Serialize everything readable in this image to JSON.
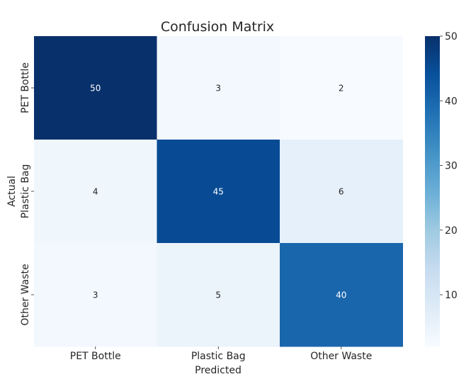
{
  "chart_data": {
    "type": "heatmap",
    "title": "Confusion Matrix",
    "xlabel": "Predicted",
    "ylabel": "Actual",
    "x_categories": [
      "PET Bottle",
      "Plastic Bag",
      "Other Waste"
    ],
    "y_categories": [
      "PET Bottle",
      "Plastic Bag",
      "Other Waste"
    ],
    "values": [
      [
        50,
        3,
        2
      ],
      [
        4,
        45,
        6
      ],
      [
        3,
        5,
        40
      ]
    ],
    "colormap": "Blues",
    "colorbar": {
      "range": [
        2,
        50
      ],
      "ticks": [
        10,
        20,
        30,
        40,
        50
      ]
    }
  }
}
